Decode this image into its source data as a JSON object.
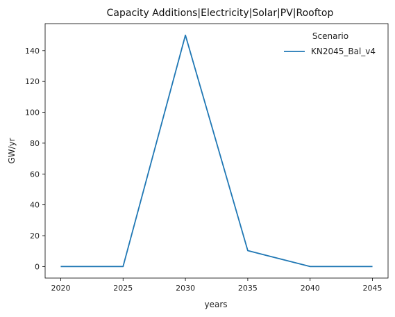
{
  "chart_data": {
    "type": "line",
    "title": "Capacity Additions|Electricity|Solar|PV|Rooftop",
    "xlabel": "years",
    "ylabel": "GW/yr",
    "x": [
      2020,
      2025,
      2030,
      2035,
      2040,
      2045
    ],
    "series": [
      {
        "name": "KN2045_Bal_v4",
        "values": [
          0,
          0,
          150,
          10.3,
          0,
          0
        ],
        "color": "#1f77b4"
      }
    ],
    "xticks": [
      2020,
      2025,
      2030,
      2035,
      2040,
      2045
    ],
    "yticks": [
      0,
      20,
      40,
      60,
      80,
      100,
      120,
      140
    ],
    "xlim": [
      2018.75,
      2046.25
    ],
    "ylim": [
      -7.5,
      157.5
    ],
    "grid": false,
    "legend": {
      "title": "Scenario",
      "placement": "top-right"
    }
  }
}
